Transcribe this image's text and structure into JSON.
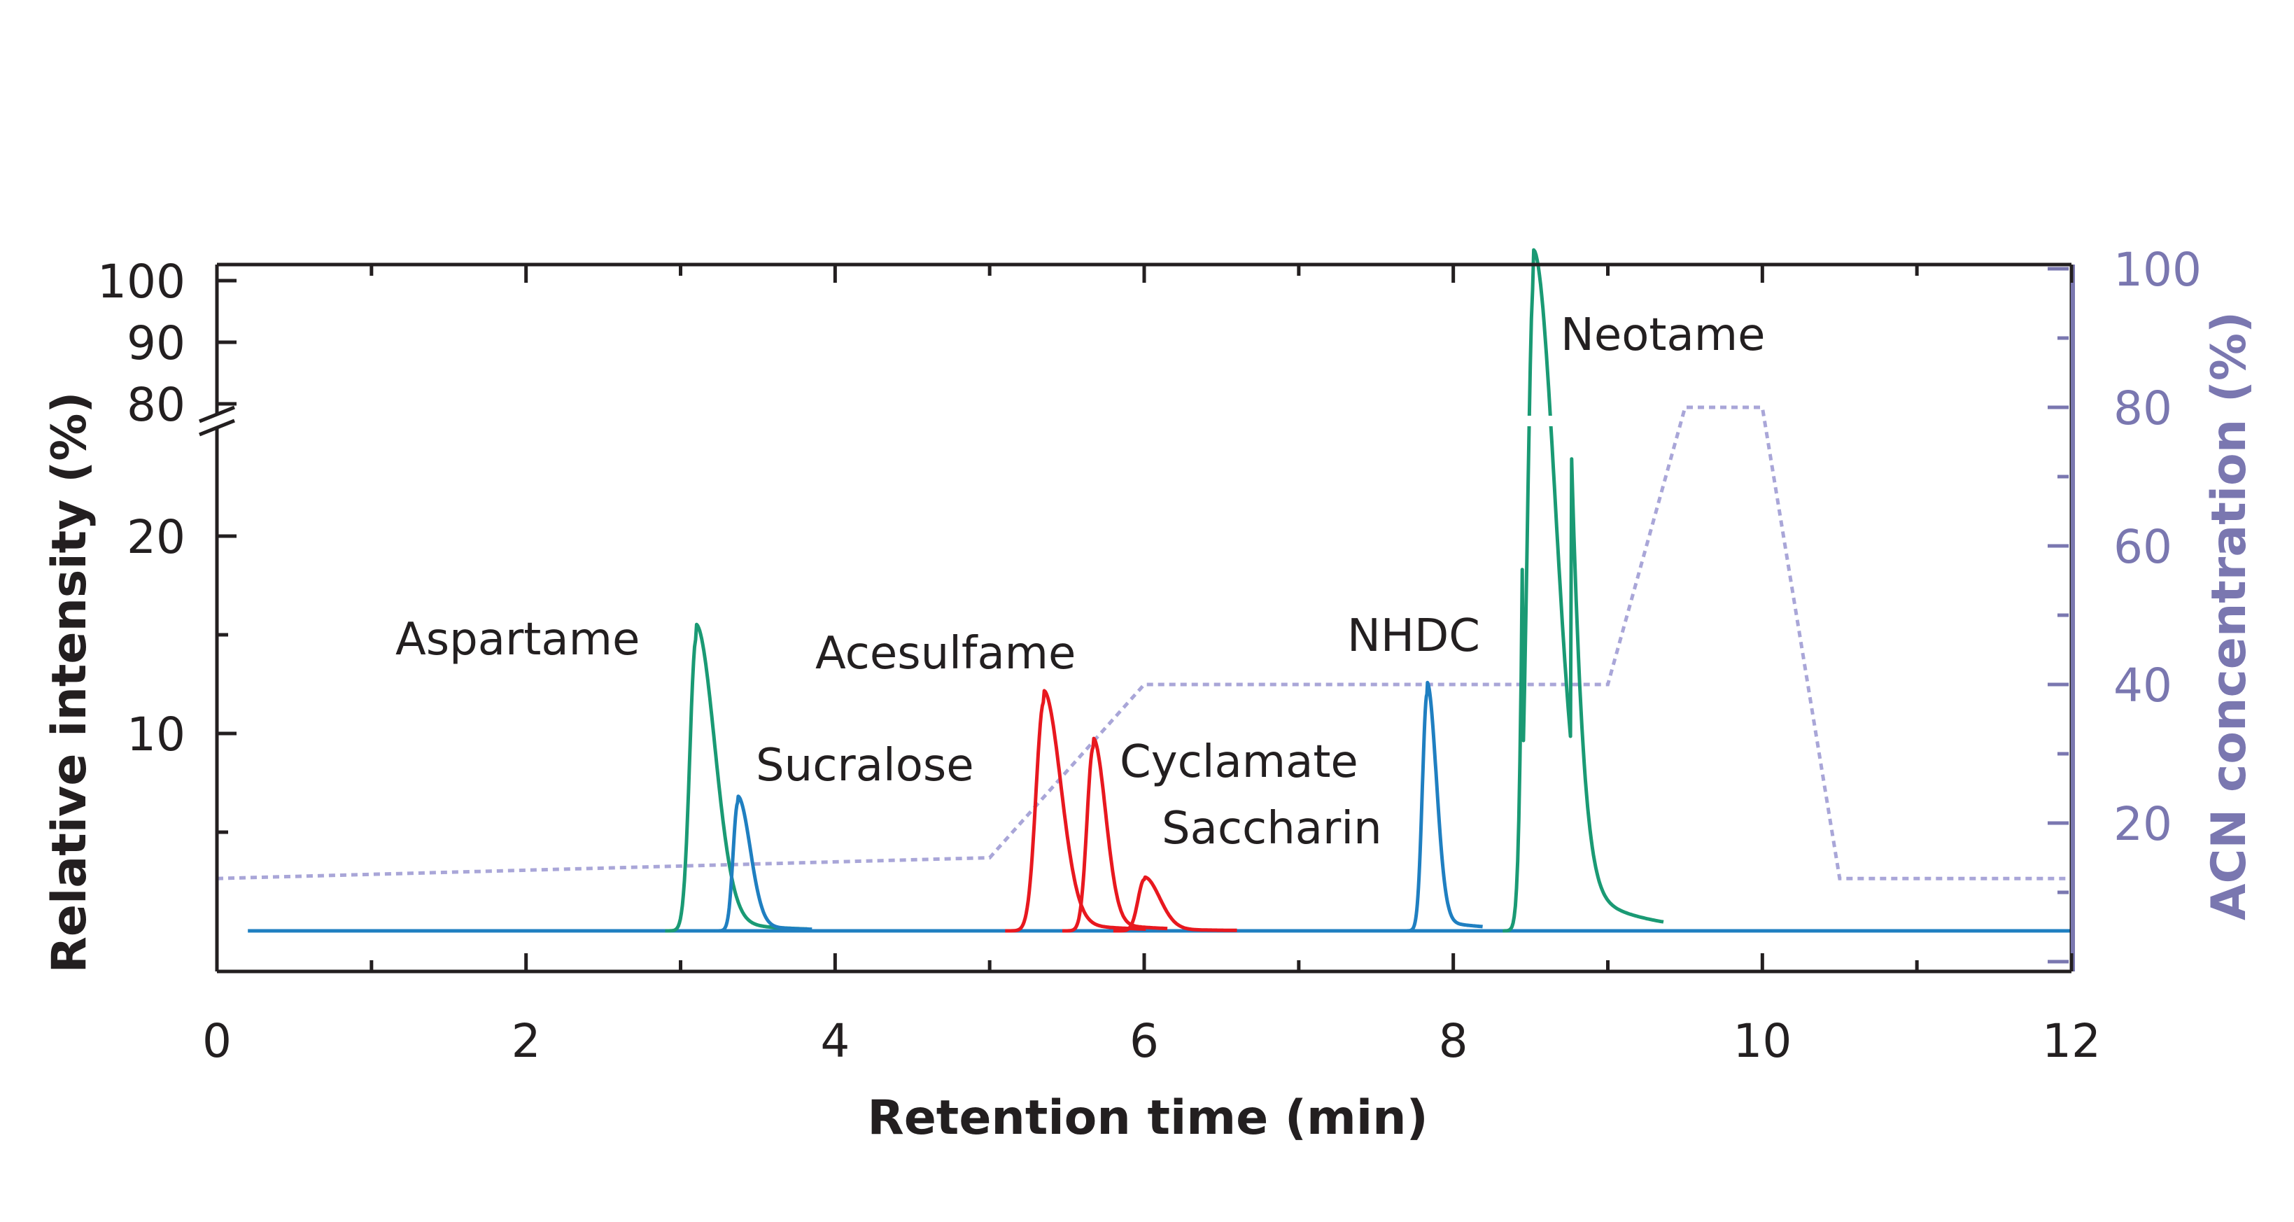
{
  "chart_data": {
    "type": "line",
    "xlabel": "Retention time (min)",
    "ylabel": "Relative intensity (%)",
    "y2label": "ACN concentration (%)",
    "xlim": [
      0,
      12
    ],
    "x_ticks": [
      "0",
      "2",
      "4",
      "6",
      "8",
      "10",
      "12"
    ],
    "y_ticks_lower": [
      "10",
      "20"
    ],
    "y_ticks_upper": [
      "80",
      "90",
      "100"
    ],
    "y2lim": [
      0,
      100
    ],
    "y2_ticks": [
      "20",
      "40",
      "60",
      "80",
      "100"
    ],
    "y_axis_break": true,
    "grid": false,
    "colors": {
      "green": "#1a9a74",
      "blue": "#1f7fc1",
      "red": "#e8181f",
      "gradient": "#a9a6d8",
      "axis_right": "#7a77b0",
      "axis": "#231f20"
    },
    "series": [
      {
        "name": "Aspartame",
        "color": "green",
        "peak_x": 3.1,
        "peak_y": 14.8,
        "width_left": 0.04,
        "width_right": 0.12
      },
      {
        "name": "Sucralose",
        "color": "blue",
        "peak_x": 3.37,
        "peak_y": 6.5,
        "width_left": 0.03,
        "width_right": 0.08
      },
      {
        "name": "Acesulfame",
        "color": "red",
        "peak_x": 5.35,
        "peak_y": 11.6,
        "width_left": 0.05,
        "width_right": 0.11
      },
      {
        "name": "Cyclamate",
        "color": "red",
        "peak_x": 5.67,
        "peak_y": 9.3,
        "width_left": 0.04,
        "width_right": 0.08
      },
      {
        "name": "Saccharin",
        "color": "red",
        "peak_x": 6.0,
        "peak_y": 2.6,
        "width_left": 0.04,
        "width_right": 0.1
      },
      {
        "name": "NHDC",
        "color": "blue",
        "peak_x": 7.83,
        "peak_y": 12.0,
        "width_left": 0.03,
        "width_right": 0.06
      },
      {
        "name": "Neotame",
        "color": "green",
        "peak_x": 8.52,
        "peak_y": 100,
        "width_left": 0.04,
        "width_right": 0.14
      }
    ],
    "gradient": {
      "name": "ACN concentration",
      "x": [
        0,
        5,
        6,
        9,
        9.5,
        10,
        10.5,
        12
      ],
      "y": [
        12,
        15,
        40,
        40,
        80,
        80,
        12,
        12
      ]
    },
    "annotations": [
      "Aspartame",
      "Sucralose",
      "Acesulfame",
      "Cyclamate",
      "Saccharin",
      "NHDC",
      "Neotame"
    ]
  }
}
